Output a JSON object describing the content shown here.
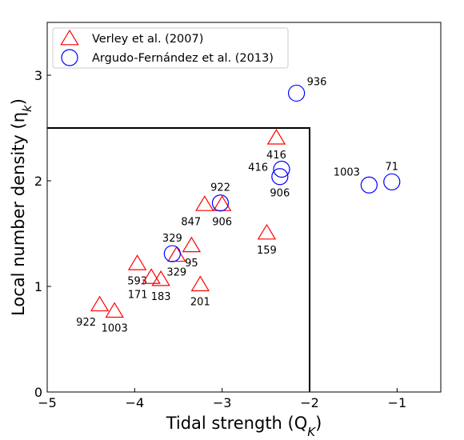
{
  "chart_data": {
    "type": "scatter",
    "xlabel": "Tidal strength (Q",
    "xlabel_sub": "K",
    "xlabel_end": ")",
    "ylabel": "Local number density (η",
    "ylabel_sub": "k",
    "ylabel_end": ")",
    "xlim": [
      -5,
      -0.5
    ],
    "ylim": [
      0,
      3.5
    ],
    "xticks": [
      -5,
      -4,
      -3,
      -2,
      -1
    ],
    "xtick_labels": [
      "−5",
      "−4",
      "−3",
      "−2",
      "−1"
    ],
    "yticks": [
      0,
      1,
      2,
      3
    ],
    "ytick_labels": [
      "0",
      "1",
      "2",
      "3"
    ],
    "grid": false,
    "legend": "top-left",
    "region_box": {
      "x": [
        -5,
        -2
      ],
      "y": [
        0,
        2.5
      ]
    },
    "series": [
      {
        "name": "Verley et al. (2007)",
        "marker": "triangle",
        "color": "#ff0000",
        "points": [
          {
            "x": -4.4,
            "y": 0.82,
            "label": "922",
            "label_pos": "below-left"
          },
          {
            "x": -4.23,
            "y": 0.76,
            "label": "1003",
            "label_pos": "below"
          },
          {
            "x": -3.97,
            "y": 1.21,
            "label": "593",
            "label_pos": "below"
          },
          {
            "x": -3.81,
            "y": 1.08,
            "label": "171",
            "label_pos": "below-left"
          },
          {
            "x": -3.7,
            "y": 1.06,
            "label": "183",
            "label_pos": "below"
          },
          {
            "x": -3.52,
            "y": 1.29,
            "label": "329",
            "label_pos": "below"
          },
          {
            "x": -3.35,
            "y": 1.38,
            "label": "95",
            "label_pos": "below"
          },
          {
            "x": -3.25,
            "y": 1.01,
            "label": "201",
            "label_pos": "below"
          },
          {
            "x": -3.2,
            "y": 1.77,
            "label": "847",
            "label_pos": "below-left"
          },
          {
            "x": -3.0,
            "y": 1.77,
            "label": "906",
            "label_pos": "below"
          },
          {
            "x": -2.49,
            "y": 1.5,
            "label": "159",
            "label_pos": "below"
          },
          {
            "x": -2.38,
            "y": 2.4,
            "label": "416",
            "label_pos": "below"
          }
        ]
      },
      {
        "name": "Argudo-Fernández et al. (2013)",
        "marker": "circle",
        "color": "#0000ff",
        "points": [
          {
            "x": -3.57,
            "y": 1.31,
            "label": "329",
            "label_pos": "above"
          },
          {
            "x": -3.02,
            "y": 1.79,
            "label": "922",
            "label_pos": "above"
          },
          {
            "x": -2.32,
            "y": 2.11,
            "label": "416",
            "label_pos": "left"
          },
          {
            "x": -2.34,
            "y": 2.04,
            "label": "906",
            "label_pos": "below"
          },
          {
            "x": -2.15,
            "y": 2.83,
            "label": "936",
            "label_pos": "above-right"
          },
          {
            "x": -1.32,
            "y": 1.96,
            "label": "1003",
            "label_pos": "above-left"
          },
          {
            "x": -1.06,
            "y": 1.99,
            "label": "71",
            "label_pos": "above"
          }
        ]
      }
    ]
  }
}
